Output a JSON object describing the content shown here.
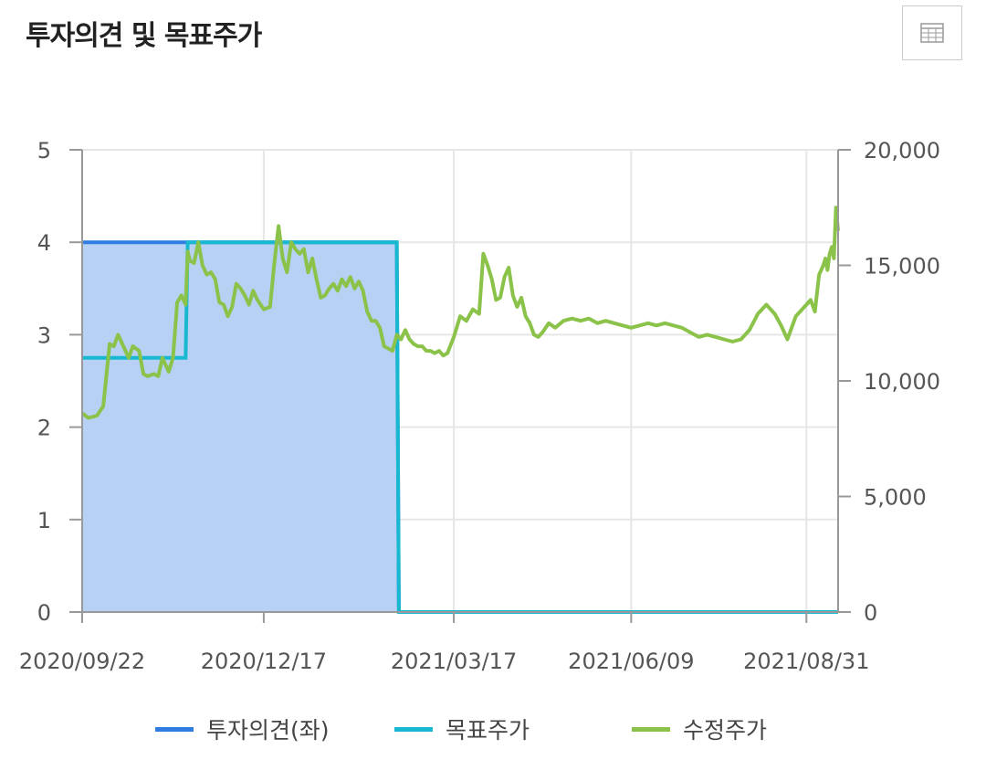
{
  "title": "투자의견 및 목표주가",
  "toolbar": {
    "table_icon": "table-icon"
  },
  "colors": {
    "opinion": "#2f7de1",
    "target": "#17b8d0",
    "price": "#8bc34a",
    "area_fill": "#b7d1f4",
    "grid": "#e6e6e6",
    "axis": "#999999"
  },
  "legend": [
    {
      "label": "투자의견(좌)",
      "color": "#2f7de1"
    },
    {
      "label": "목표주가",
      "color": "#17b8d0"
    },
    {
      "label": "수정주가",
      "color": "#8bc34a"
    }
  ],
  "chart_data": {
    "type": "line",
    "x_ticks": [
      "2020/09/22",
      "2020/12/17",
      "2021/03/17",
      "2021/06/09",
      "2021/08/31"
    ],
    "x_range": [
      "2020/09/22",
      "2021/09/15"
    ],
    "y_left": {
      "ticks": [
        "0",
        "1",
        "2",
        "3",
        "4",
        "5"
      ],
      "range": [
        0,
        5
      ]
    },
    "y_right": {
      "ticks": [
        "0",
        "5,000",
        "10,000",
        "15,000",
        "20,000"
      ],
      "range": [
        0,
        20000
      ]
    },
    "grid": true,
    "legend_position": "bottom",
    "series": [
      {
        "name": "투자의견(좌)",
        "axis": "left",
        "style": "step-area",
        "points": [
          [
            "2020/09/22",
            4
          ],
          [
            "2021/02/18",
            4
          ],
          [
            "2021/02/19",
            0
          ],
          [
            "2021/09/15",
            0
          ]
        ]
      },
      {
        "name": "목표주가",
        "axis": "right",
        "style": "step",
        "points": [
          [
            "2020/09/22",
            11000
          ],
          [
            "2020/11/10",
            11000
          ],
          [
            "2020/11/11",
            16000
          ],
          [
            "2021/02/18",
            16000
          ],
          [
            "2021/02/19",
            0
          ],
          [
            "2021/09/15",
            0
          ]
        ]
      },
      {
        "name": "수정주가",
        "axis": "right",
        "style": "line",
        "points": [
          [
            "2020/09/22",
            8600
          ],
          [
            "2020/09/25",
            8400
          ],
          [
            "2020/09/29",
            8500
          ],
          [
            "2020/10/02",
            8900
          ],
          [
            "2020/10/05",
            11600
          ],
          [
            "2020/10/07",
            11500
          ],
          [
            "2020/10/09",
            12000
          ],
          [
            "2020/10/12",
            11400
          ],
          [
            "2020/10/14",
            11000
          ],
          [
            "2020/10/16",
            11500
          ],
          [
            "2020/10/19",
            11300
          ],
          [
            "2020/10/21",
            10300
          ],
          [
            "2020/10/23",
            10200
          ],
          [
            "2020/10/26",
            10300
          ],
          [
            "2020/10/28",
            10200
          ],
          [
            "2020/10/30",
            11000
          ],
          [
            "2020/11/02",
            10400
          ],
          [
            "2020/11/04",
            11000
          ],
          [
            "2020/11/06",
            13400
          ],
          [
            "2020/11/08",
            13700
          ],
          [
            "2020/11/10",
            13300
          ],
          [
            "2020/11/11",
            15600
          ],
          [
            "2020/11/12",
            15200
          ],
          [
            "2020/11/14",
            15100
          ],
          [
            "2020/11/16",
            16000
          ],
          [
            "2020/11/18",
            15000
          ],
          [
            "2020/11/20",
            14600
          ],
          [
            "2020/11/22",
            14700
          ],
          [
            "2020/11/24",
            14400
          ],
          [
            "2020/11/26",
            13400
          ],
          [
            "2020/11/28",
            13300
          ],
          [
            "2020/11/30",
            12800
          ],
          [
            "2020/12/02",
            13200
          ],
          [
            "2020/12/04",
            14200
          ],
          [
            "2020/12/06",
            14000
          ],
          [
            "2020/12/08",
            13700
          ],
          [
            "2020/12/10",
            13300
          ],
          [
            "2020/12/12",
            13900
          ],
          [
            "2020/12/14",
            13500
          ],
          [
            "2020/12/17",
            13100
          ],
          [
            "2020/12/20",
            13200
          ],
          [
            "2020/12/22",
            15100
          ],
          [
            "2020/12/24",
            16700
          ],
          [
            "2020/12/26",
            15300
          ],
          [
            "2020/12/28",
            14700
          ],
          [
            "2020/12/30",
            16000
          ],
          [
            "2021/01/01",
            15700
          ],
          [
            "2021/01/03",
            15500
          ],
          [
            "2021/01/05",
            15700
          ],
          [
            "2021/01/07",
            14700
          ],
          [
            "2021/01/09",
            15300
          ],
          [
            "2021/01/11",
            14400
          ],
          [
            "2021/01/13",
            13600
          ],
          [
            "2021/01/15",
            13700
          ],
          [
            "2021/01/17",
            14000
          ],
          [
            "2021/01/19",
            14200
          ],
          [
            "2021/01/21",
            13900
          ],
          [
            "2021/01/23",
            14400
          ],
          [
            "2021/01/25",
            14100
          ],
          [
            "2021/01/27",
            14500
          ],
          [
            "2021/01/29",
            14000
          ],
          [
            "2021/01/31",
            14300
          ],
          [
            "2021/02/02",
            13900
          ],
          [
            "2021/02/04",
            13000
          ],
          [
            "2021/02/06",
            12600
          ],
          [
            "2021/02/08",
            12600
          ],
          [
            "2021/02/10",
            12300
          ],
          [
            "2021/02/12",
            11500
          ],
          [
            "2021/02/14",
            11400
          ],
          [
            "2021/02/16",
            11300
          ],
          [
            "2021/02/18",
            12000
          ],
          [
            "2021/02/20",
            11800
          ],
          [
            "2021/02/22",
            12200
          ],
          [
            "2021/02/24",
            11800
          ],
          [
            "2021/02/26",
            11600
          ],
          [
            "2021/02/28",
            11500
          ],
          [
            "2021/03/02",
            11500
          ],
          [
            "2021/03/04",
            11300
          ],
          [
            "2021/03/06",
            11300
          ],
          [
            "2021/03/08",
            11200
          ],
          [
            "2021/03/10",
            11300
          ],
          [
            "2021/03/12",
            11100
          ],
          [
            "2021/03/14",
            11200
          ],
          [
            "2021/03/17",
            11900
          ],
          [
            "2021/03/20",
            12800
          ],
          [
            "2021/03/23",
            12600
          ],
          [
            "2021/03/26",
            13100
          ],
          [
            "2021/03/29",
            12900
          ],
          [
            "2021/03/31",
            15500
          ],
          [
            "2021/04/02",
            15000
          ],
          [
            "2021/04/04",
            14400
          ],
          [
            "2021/04/06",
            13500
          ],
          [
            "2021/04/08",
            13600
          ],
          [
            "2021/04/10",
            14500
          ],
          [
            "2021/04/12",
            14900
          ],
          [
            "2021/04/14",
            13700
          ],
          [
            "2021/04/16",
            13200
          ],
          [
            "2021/04/18",
            13600
          ],
          [
            "2021/04/20",
            12800
          ],
          [
            "2021/04/22",
            12500
          ],
          [
            "2021/04/24",
            12000
          ],
          [
            "2021/04/26",
            11900
          ],
          [
            "2021/04/28",
            12100
          ],
          [
            "2021/05/01",
            12500
          ],
          [
            "2021/05/04",
            12300
          ],
          [
            "2021/05/08",
            12600
          ],
          [
            "2021/05/12",
            12700
          ],
          [
            "2021/05/16",
            12600
          ],
          [
            "2021/05/20",
            12700
          ],
          [
            "2021/05/24",
            12500
          ],
          [
            "2021/05/28",
            12600
          ],
          [
            "2021/06/01",
            12500
          ],
          [
            "2021/06/05",
            12400
          ],
          [
            "2021/06/09",
            12300
          ],
          [
            "2021/06/13",
            12400
          ],
          [
            "2021/06/17",
            12500
          ],
          [
            "2021/06/21",
            12400
          ],
          [
            "2021/06/25",
            12500
          ],
          [
            "2021/06/29",
            12400
          ],
          [
            "2021/07/03",
            12300
          ],
          [
            "2021/07/07",
            12100
          ],
          [
            "2021/07/11",
            11900
          ],
          [
            "2021/07/15",
            12000
          ],
          [
            "2021/07/19",
            11900
          ],
          [
            "2021/07/23",
            11800
          ],
          [
            "2021/07/27",
            11700
          ],
          [
            "2021/07/31",
            11800
          ],
          [
            "2021/08/04",
            12200
          ],
          [
            "2021/08/08",
            12900
          ],
          [
            "2021/08/12",
            13300
          ],
          [
            "2021/08/16",
            12900
          ],
          [
            "2021/08/19",
            12400
          ],
          [
            "2021/08/22",
            11800
          ],
          [
            "2021/08/24",
            12300
          ],
          [
            "2021/08/26",
            12800
          ],
          [
            "2021/08/28",
            13000
          ],
          [
            "2021/08/31",
            13300
          ],
          [
            "2021/09/02",
            13500
          ],
          [
            "2021/09/04",
            13000
          ],
          [
            "2021/09/06",
            14600
          ],
          [
            "2021/09/08",
            15000
          ],
          [
            "2021/09/09",
            15300
          ],
          [
            "2021/09/10",
            14800
          ],
          [
            "2021/09/11",
            15500
          ],
          [
            "2021/09/12",
            15800
          ],
          [
            "2021/09/13",
            15300
          ],
          [
            "2021/09/14",
            17500
          ],
          [
            "2021/09/15",
            16500
          ]
        ]
      }
    ]
  }
}
